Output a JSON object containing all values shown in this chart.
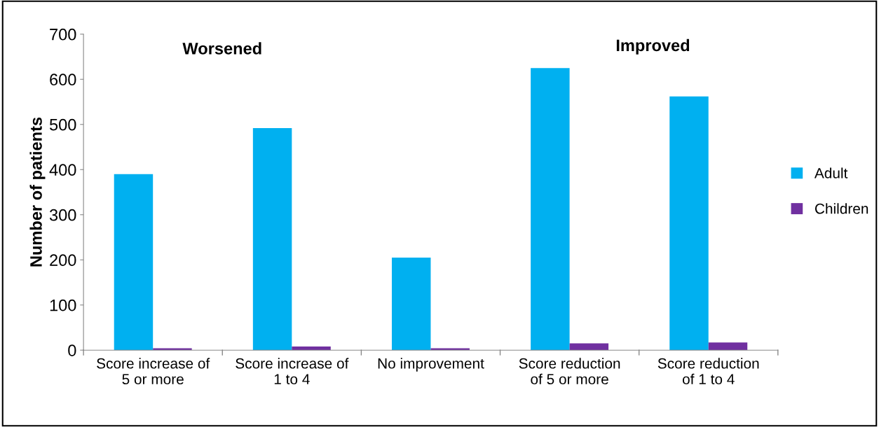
{
  "chart_data": {
    "type": "bar",
    "ylabel": "Number of patients",
    "categories": [
      "Score increase of\n5 or more",
      "Score increase of\n1 to 4",
      "No improvement",
      "Score reduction\nof 5 or more",
      "Score reduction\nof 1 to 4"
    ],
    "series": [
      {
        "name": "Adult",
        "color": "#00b0f0",
        "values": [
          390,
          492,
          205,
          625,
          562
        ]
      },
      {
        "name": "Children",
        "color": "#7030a0",
        "values": [
          4,
          8,
          4,
          15,
          17
        ]
      }
    ],
    "ylim": [
      0,
      700
    ],
    "yticks": [
      0,
      100,
      200,
      300,
      400,
      500,
      600,
      700
    ],
    "annotations": [
      "Worsened",
      "Improved"
    ],
    "grid": false,
    "legend": "right"
  }
}
